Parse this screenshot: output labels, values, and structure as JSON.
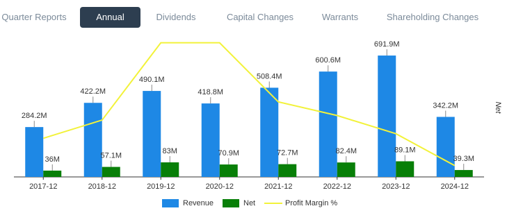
{
  "tabs": {
    "items": [
      "Quarter Reports",
      "Annual",
      "Dividends",
      "Capital Changes",
      "Warrants",
      "Shareholding Changes"
    ],
    "active": 1
  },
  "chart_data": {
    "type": "bar",
    "categories": [
      "2017-12",
      "2018-12",
      "2019-12",
      "2020-12",
      "2021-12",
      "2022-12",
      "2023-12",
      "2024-12"
    ],
    "series": [
      {
        "name": "Revenue",
        "color": "#1e88e5",
        "values": [
          284.2,
          422.2,
          490.1,
          418.8,
          508.4,
          600.6,
          691.9,
          342.2
        ],
        "value_labels": [
          "284.2M",
          "422.2M",
          "490.1M",
          "418.8M",
          "508.4M",
          "600.6M",
          "691.9M",
          "342.2M"
        ]
      },
      {
        "name": "Net",
        "color": "#087f08",
        "values": [
          36,
          57.1,
          83,
          70.9,
          72.7,
          82.4,
          89.1,
          39.3
        ],
        "value_labels": [
          "36M",
          "57.1M",
          "83M",
          "70.9M",
          "72.7M",
          "82.4M",
          "89.1M",
          "39.3M"
        ]
      },
      {
        "name": "Profit Margin %",
        "color": "#f2f23a",
        "type": "line",
        "axis": "y2",
        "values": [
          12.7,
          13.5,
          16.9,
          16.9,
          14.3,
          13.7,
          12.9,
          11.5
        ]
      }
    ],
    "ylim": [
      0,
      700
    ],
    "y2lim": [
      11,
      16.4
    ],
    "y2label": "Net"
  }
}
